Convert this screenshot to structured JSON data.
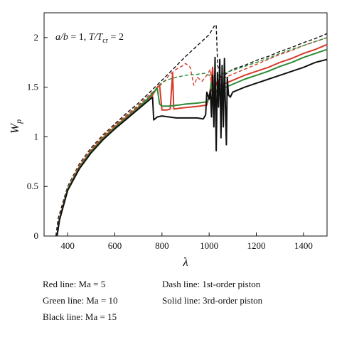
{
  "chart_data": {
    "type": "line",
    "title": "",
    "xlabel": "λ",
    "ylabel": "W_p",
    "ylabel_main": "W",
    "ylabel_sub": "p",
    "xlim": [
      300,
      1500
    ],
    "ylim": [
      0,
      2.25
    ],
    "x_ticks": [
      400,
      600,
      800,
      1000,
      1200,
      1400
    ],
    "x_tick_labels": [
      "400",
      "600",
      "800",
      "1000",
      "1200",
      "1400"
    ],
    "y_ticks": [
      0,
      0.5,
      1,
      1.5,
      2
    ],
    "y_tick_labels": [
      "0",
      "0.5",
      "1",
      "1.5",
      "2"
    ],
    "grid": false,
    "annotation": {
      "ab_main": "a/b",
      "ab_value": " = 1,  ",
      "t_main": "T/T",
      "t_sub": "cr",
      "t_value": " = 2"
    },
    "legend_notes": {
      "red": "Red line: Ma  = 5",
      "green": "Green line: Ma  = 10",
      "black": "Black line: Ma  = 15",
      "dash": "Dash line: 1st-order piston",
      "solid": "Solid line: 3rd-order piston"
    },
    "series": [
      {
        "color": "#111111",
        "style": "dashed",
        "points": [
          [
            350,
            0
          ],
          [
            360,
            0.18
          ],
          [
            400,
            0.5
          ],
          [
            450,
            0.73
          ],
          [
            500,
            0.89
          ],
          [
            550,
            1.02
          ],
          [
            600,
            1.13
          ],
          [
            650,
            1.24
          ],
          [
            700,
            1.34
          ],
          [
            740,
            1.43
          ],
          [
            800,
            1.57
          ],
          [
            850,
            1.69
          ],
          [
            900,
            1.81
          ],
          [
            950,
            1.92
          ],
          [
            1000,
            2.03
          ],
          [
            1020,
            2.11
          ],
          [
            1030,
            2.13
          ],
          [
            1036,
            1.72
          ],
          [
            1050,
            1.6
          ],
          [
            1100,
            1.68
          ],
          [
            1150,
            1.72
          ],
          [
            1200,
            1.77
          ],
          [
            1250,
            1.81
          ],
          [
            1300,
            1.86
          ],
          [
            1350,
            1.9
          ],
          [
            1400,
            1.95
          ],
          [
            1450,
            1.99
          ],
          [
            1500,
            2.04
          ]
        ]
      },
      {
        "color": "#d63a2a",
        "style": "dashed",
        "points": [
          [
            355,
            0
          ],
          [
            365,
            0.17
          ],
          [
            400,
            0.49
          ],
          [
            450,
            0.72
          ],
          [
            500,
            0.88
          ],
          [
            550,
            1.01
          ],
          [
            600,
            1.12
          ],
          [
            650,
            1.22
          ],
          [
            700,
            1.32
          ],
          [
            740,
            1.41
          ],
          [
            780,
            1.49
          ],
          [
            810,
            1.56
          ],
          [
            830,
            1.62
          ],
          [
            860,
            1.68
          ],
          [
            890,
            1.72
          ],
          [
            900,
            1.74
          ],
          [
            920,
            1.7
          ],
          [
            935,
            1.52
          ],
          [
            950,
            1.6
          ],
          [
            970,
            1.56
          ],
          [
            990,
            1.62
          ],
          [
            1005,
            1.68
          ],
          [
            1010,
            1.45
          ],
          [
            1030,
            1.55
          ],
          [
            1050,
            1.58
          ],
          [
            1100,
            1.63
          ],
          [
            1150,
            1.68
          ],
          [
            1200,
            1.73
          ],
          [
            1250,
            1.78
          ],
          [
            1300,
            1.83
          ],
          [
            1350,
            1.87
          ],
          [
            1400,
            1.92
          ],
          [
            1450,
            1.96
          ],
          [
            1500,
            2.0
          ]
        ]
      },
      {
        "color": "#2d8a35",
        "style": "dashed",
        "points": [
          [
            355,
            0
          ],
          [
            365,
            0.17
          ],
          [
            400,
            0.48
          ],
          [
            450,
            0.71
          ],
          [
            500,
            0.87
          ],
          [
            550,
            1.0
          ],
          [
            600,
            1.11
          ],
          [
            650,
            1.21
          ],
          [
            700,
            1.31
          ],
          [
            740,
            1.39
          ],
          [
            760,
            1.44
          ],
          [
            780,
            1.5
          ],
          [
            800,
            1.55
          ],
          [
            830,
            1.58
          ],
          [
            860,
            1.6
          ],
          [
            900,
            1.62
          ],
          [
            950,
            1.63
          ],
          [
            980,
            1.64
          ],
          [
            1000,
            1.62
          ],
          [
            1020,
            1.6
          ],
          [
            1050,
            1.63
          ],
          [
            1100,
            1.67
          ],
          [
            1150,
            1.71
          ],
          [
            1200,
            1.75
          ],
          [
            1250,
            1.79
          ],
          [
            1300,
            1.84
          ],
          [
            1350,
            1.88
          ],
          [
            1400,
            1.92
          ],
          [
            1450,
            1.96
          ],
          [
            1500,
            2.0
          ]
        ]
      },
      {
        "color": "#d63a2a",
        "style": "solid",
        "points": [
          [
            355,
            0
          ],
          [
            365,
            0.17
          ],
          [
            400,
            0.47
          ],
          [
            450,
            0.7
          ],
          [
            500,
            0.86
          ],
          [
            550,
            0.99
          ],
          [
            600,
            1.1
          ],
          [
            650,
            1.2
          ],
          [
            700,
            1.3
          ],
          [
            730,
            1.36
          ],
          [
            760,
            1.42
          ],
          [
            770,
            1.46
          ],
          [
            780,
            1.5
          ],
          [
            790,
            1.52
          ],
          [
            800,
            1.27
          ],
          [
            820,
            1.27
          ],
          [
            835,
            1.28
          ],
          [
            845,
            1.64
          ],
          [
            850,
            1.28
          ],
          [
            880,
            1.29
          ],
          [
            920,
            1.3
          ],
          [
            960,
            1.31
          ],
          [
            990,
            1.32
          ],
          [
            1005,
            1.46
          ],
          [
            1015,
            1.7
          ],
          [
            1020,
            1.42
          ],
          [
            1030,
            1.55
          ],
          [
            1040,
            1.5
          ],
          [
            1050,
            1.52
          ],
          [
            1100,
            1.57
          ],
          [
            1150,
            1.62
          ],
          [
            1200,
            1.66
          ],
          [
            1250,
            1.7
          ],
          [
            1300,
            1.75
          ],
          [
            1350,
            1.79
          ],
          [
            1400,
            1.84
          ],
          [
            1450,
            1.88
          ],
          [
            1500,
            1.93
          ]
        ]
      },
      {
        "color": "#2d8a35",
        "style": "solid",
        "points": [
          [
            355,
            0
          ],
          [
            365,
            0.16
          ],
          [
            400,
            0.47
          ],
          [
            450,
            0.69
          ],
          [
            500,
            0.85
          ],
          [
            550,
            0.98
          ],
          [
            600,
            1.09
          ],
          [
            650,
            1.19
          ],
          [
            700,
            1.29
          ],
          [
            730,
            1.36
          ],
          [
            760,
            1.44
          ],
          [
            780,
            1.49
          ],
          [
            790,
            1.33
          ],
          [
            800,
            1.31
          ],
          [
            830,
            1.31
          ],
          [
            870,
            1.32
          ],
          [
            900,
            1.33
          ],
          [
            950,
            1.34
          ],
          [
            980,
            1.35
          ],
          [
            990,
            1.35
          ],
          [
            1000,
            1.4
          ],
          [
            1010,
            1.55
          ],
          [
            1020,
            1.5
          ],
          [
            1035,
            1.44
          ],
          [
            1050,
            1.48
          ],
          [
            1100,
            1.53
          ],
          [
            1150,
            1.58
          ],
          [
            1200,
            1.62
          ],
          [
            1250,
            1.66
          ],
          [
            1300,
            1.71
          ],
          [
            1350,
            1.75
          ],
          [
            1400,
            1.8
          ],
          [
            1450,
            1.84
          ],
          [
            1500,
            1.88
          ]
        ]
      },
      {
        "color": "#111111",
        "style": "solid",
        "points": [
          [
            355,
            0
          ],
          [
            365,
            0.16
          ],
          [
            400,
            0.46
          ],
          [
            450,
            0.68
          ],
          [
            500,
            0.84
          ],
          [
            550,
            0.97
          ],
          [
            600,
            1.08
          ],
          [
            650,
            1.18
          ],
          [
            700,
            1.28
          ],
          [
            740,
            1.36
          ],
          [
            760,
            1.4
          ],
          [
            765,
            1.17
          ],
          [
            780,
            1.2
          ],
          [
            800,
            1.21
          ],
          [
            830,
            1.2
          ],
          [
            860,
            1.19
          ],
          [
            900,
            1.19
          ],
          [
            950,
            1.19
          ],
          [
            975,
            1.18
          ],
          [
            985,
            1.22
          ],
          [
            990,
            1.45
          ],
          [
            1000,
            1.38
          ],
          [
            1005,
            1.47
          ],
          [
            1010,
            1.2
          ],
          [
            1015,
            1.62
          ],
          [
            1020,
            1.1
          ],
          [
            1025,
            1.8
          ],
          [
            1030,
            0.86
          ],
          [
            1035,
            1.65
          ],
          [
            1040,
            1.3
          ],
          [
            1045,
            1.78
          ],
          [
            1050,
            0.99
          ],
          [
            1055,
            1.72
          ],
          [
            1060,
            1.1
          ],
          [
            1065,
            1.79
          ],
          [
            1068,
            1.42
          ],
          [
            1070,
            1.2
          ],
          [
            1073,
            0.92
          ],
          [
            1077,
            1.6
          ],
          [
            1082,
            1.42
          ],
          [
            1090,
            1.4
          ],
          [
            1100,
            1.45
          ],
          [
            1150,
            1.5
          ],
          [
            1200,
            1.54
          ],
          [
            1250,
            1.58
          ],
          [
            1300,
            1.62
          ],
          [
            1350,
            1.66
          ],
          [
            1400,
            1.7
          ],
          [
            1450,
            1.75
          ],
          [
            1500,
            1.78
          ]
        ]
      }
    ]
  }
}
